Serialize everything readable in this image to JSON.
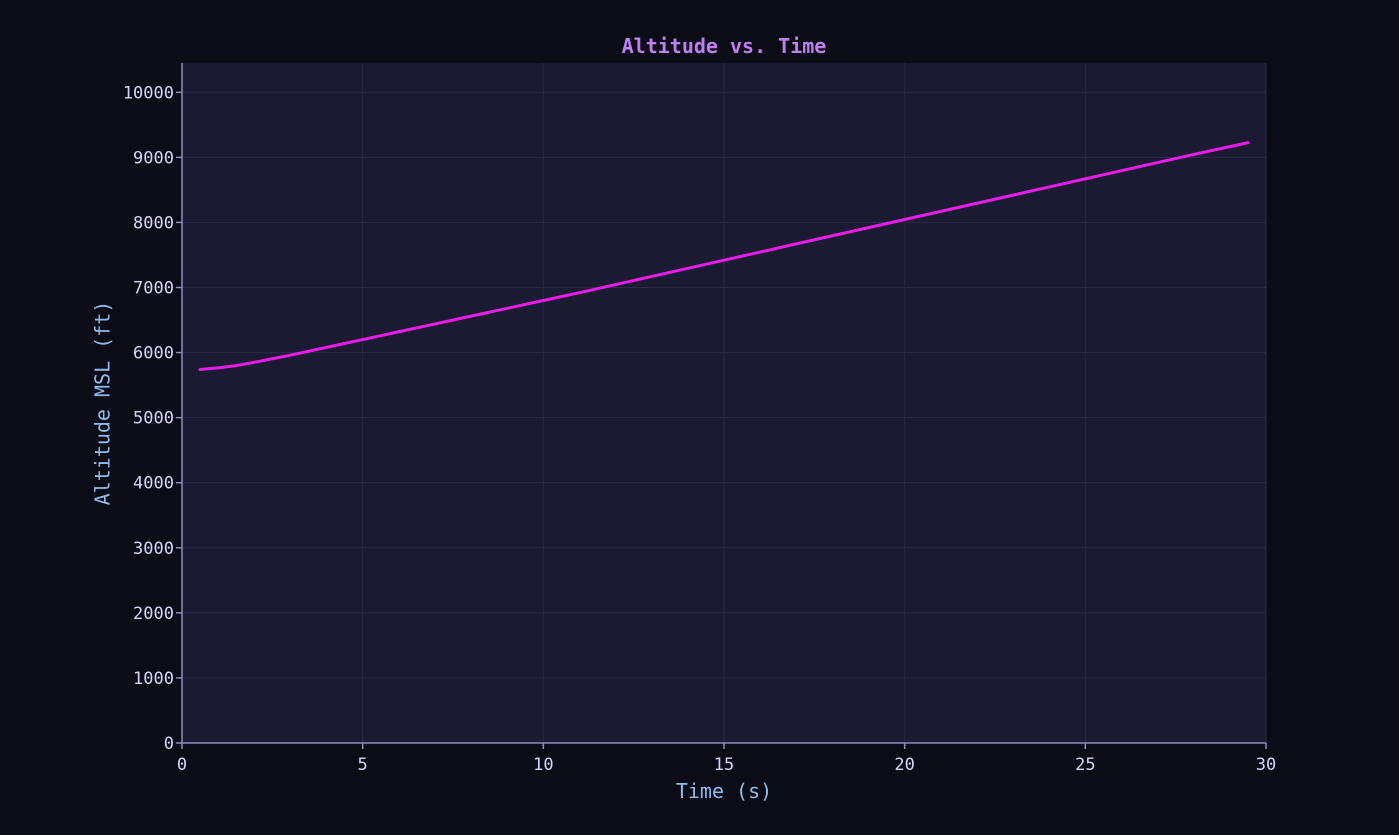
{
  "chart_data": {
    "type": "line",
    "title": "Altitude vs. Time",
    "xlabel": "Time (s)",
    "ylabel": "Altitude MSL (ft)",
    "xlim": [
      0,
      30
    ],
    "ylim": [
      0,
      10450
    ],
    "xticks": [
      0,
      5,
      10,
      15,
      20,
      25,
      30
    ],
    "yticks": [
      0,
      1000,
      2000,
      3000,
      4000,
      5000,
      6000,
      7000,
      8000,
      9000,
      10000
    ],
    "grid": true,
    "legend": "none",
    "series": [
      {
        "color": "#e81ce8",
        "x": [
          0.5,
          1.0,
          1.5,
          2.0,
          2.5,
          3.0,
          4.0,
          5.0,
          6.0,
          7.0,
          8.0,
          9.0,
          10.0,
          11.0,
          12.0,
          13.0,
          14.0,
          15.0,
          16.0,
          17.0,
          18.0,
          19.0,
          20.0,
          21.0,
          22.0,
          23.0,
          24.0,
          25.0,
          26.0,
          27.0,
          28.0,
          29.0,
          29.5
        ],
        "y": [
          5740,
          5765,
          5800,
          5850,
          5905,
          5960,
          6080,
          6200,
          6320,
          6440,
          6560,
          6680,
          6800,
          6920,
          7045,
          7170,
          7295,
          7420,
          7545,
          7670,
          7795,
          7920,
          8045,
          8170,
          8295,
          8420,
          8545,
          8670,
          8795,
          8920,
          9045,
          9165,
          9225
        ]
      }
    ]
  },
  "colors": {
    "page_background": "#0c0c17",
    "plot_background": "#1b1a33",
    "grid": "#2c2b48",
    "axis": "#8f8cc0",
    "tick_label": "#d6d4f7",
    "axis_title": "#8fbcee",
    "title": "#c07ff0"
  }
}
